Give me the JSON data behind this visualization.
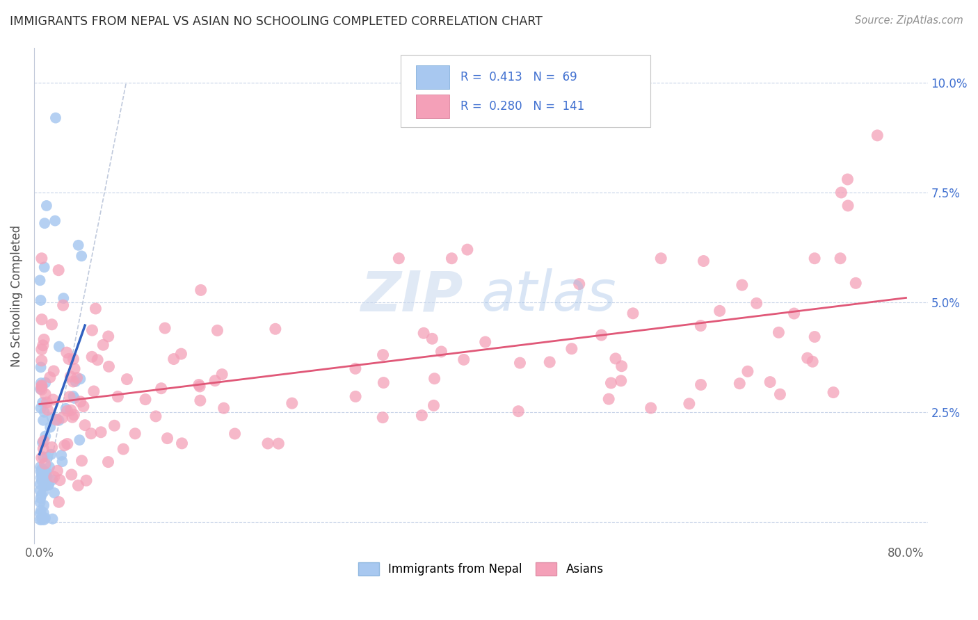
{
  "title": "IMMIGRANTS FROM NEPAL VS ASIAN NO SCHOOLING COMPLETED CORRELATION CHART",
  "source": "Source: ZipAtlas.com",
  "ylabel": "No Schooling Completed",
  "legend_label1": "Immigrants from Nepal",
  "legend_label2": "Asians",
  "r1": 0.413,
  "n1": 69,
  "r2": 0.28,
  "n2": 141,
  "color1": "#a8c8f0",
  "color2": "#f4a0b8",
  "line_color1": "#3060c0",
  "line_color2": "#e05878",
  "watermark_zip": "ZIP",
  "watermark_atlas": "atlas",
  "background_color": "#ffffff",
  "grid_color": "#c8d4e8",
  "title_color": "#303030",
  "source_color": "#909090",
  "tick_color_blue": "#4070d0",
  "tick_color_gray": "#606060",
  "ylabel_color": "#505050"
}
